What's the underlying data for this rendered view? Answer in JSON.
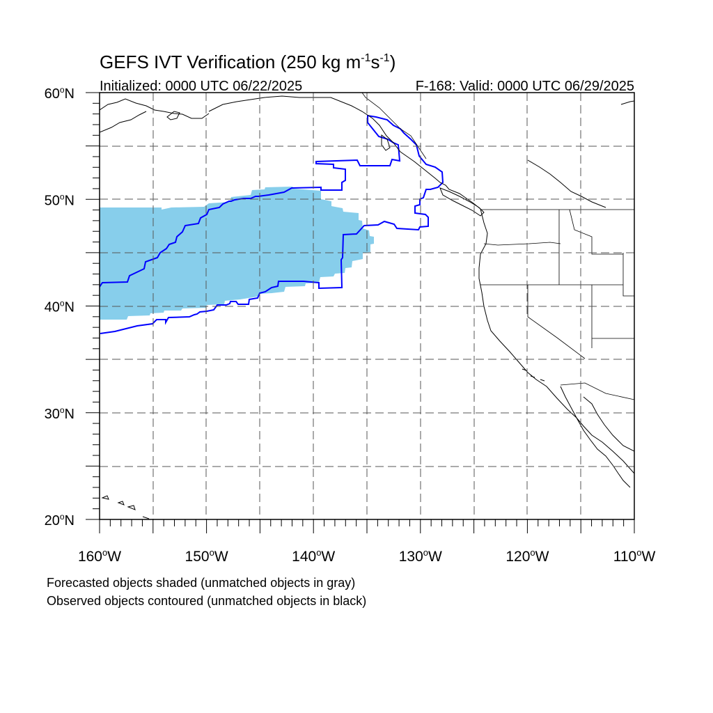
{
  "title": {
    "main": "GEFS IVT Verification (250 kg m",
    "sup1": "-1",
    "mid": "s",
    "sup2": "-1",
    "end": ")"
  },
  "subtitle_left": "Initialized: 0000 UTC 06/22/2025",
  "subtitle_right": "F-168: Valid: 0000 UTC 06/29/2025",
  "lat_labels": [
    {
      "deg": "60",
      "unit": "o",
      "hem": "N",
      "value": 60
    },
    {
      "deg": "50",
      "unit": "o",
      "hem": "N",
      "value": 50
    },
    {
      "deg": "40",
      "unit": "o",
      "hem": "N",
      "value": 40
    },
    {
      "deg": "30",
      "unit": "o",
      "hem": "N",
      "value": 30
    },
    {
      "deg": "20",
      "unit": "o",
      "hem": "N",
      "value": 20
    }
  ],
  "lon_labels": [
    {
      "deg": "160",
      "unit": "o",
      "hem": "W",
      "value": -160
    },
    {
      "deg": "150",
      "unit": "o",
      "hem": "W",
      "value": -150
    },
    {
      "deg": "140",
      "unit": "o",
      "hem": "W",
      "value": -140
    },
    {
      "deg": "130",
      "unit": "o",
      "hem": "W",
      "value": -130
    },
    {
      "deg": "120",
      "unit": "o",
      "hem": "W",
      "value": -120
    },
    {
      "deg": "110",
      "unit": "o",
      "hem": "W",
      "value": -110
    }
  ],
  "captions": {
    "line1": "Forecasted objects shaded (unmatched objects in gray)",
    "line2": "Observed objects contoured (unmatched objects in black)"
  },
  "colors": {
    "forecast_fill": "#87ceeb",
    "observed_contour": "#0000ff",
    "coastline": "#000000",
    "grid": "#555555"
  },
  "map": {
    "lon_range": [
      -160,
      -110
    ],
    "lat_range": [
      20,
      60
    ],
    "grid_interval_deg": 5,
    "gridlines": "dashed"
  }
}
